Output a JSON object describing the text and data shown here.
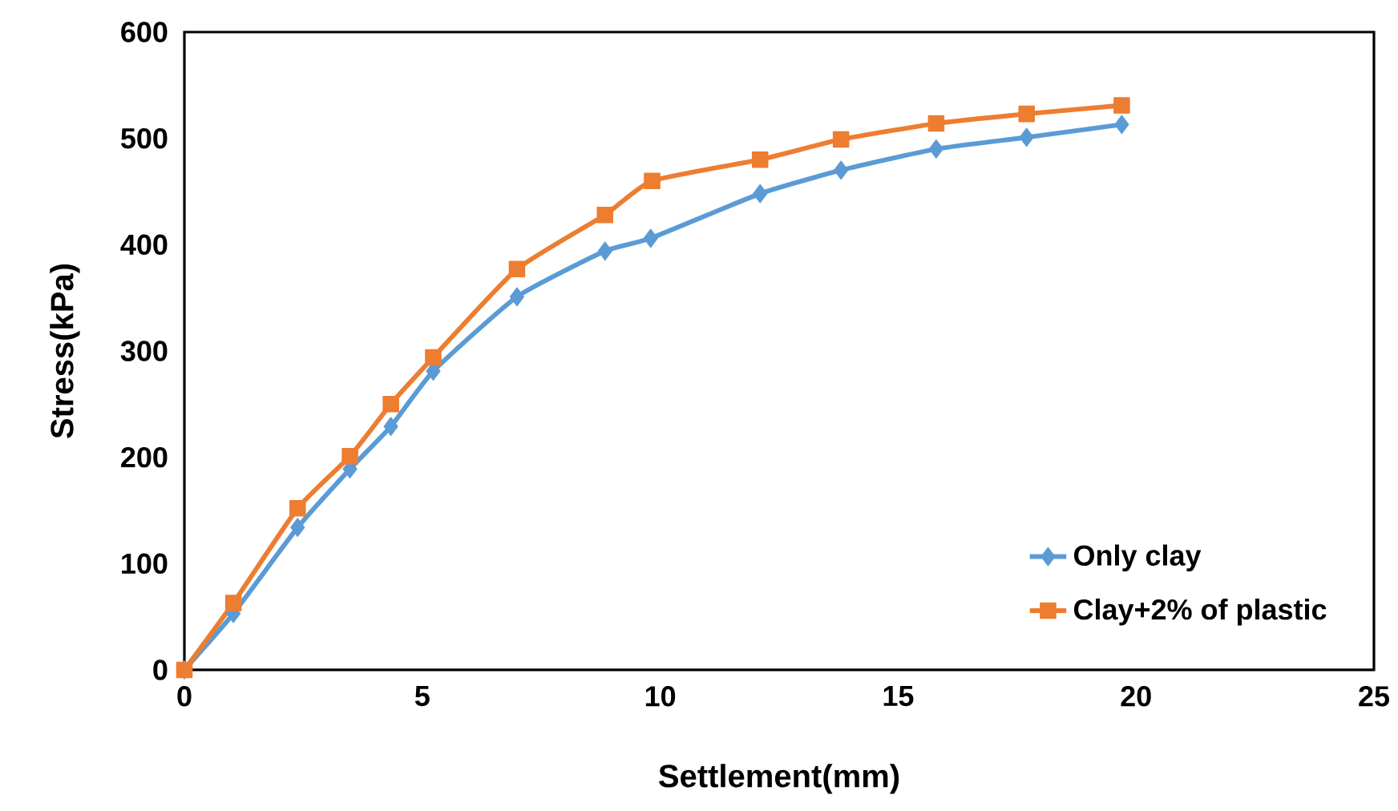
{
  "chart_data": {
    "type": "line",
    "xlabel": "Settlement(mm)",
    "ylabel": "Stress(kPa)",
    "xlim": [
      0,
      25
    ],
    "xticks": [
      0,
      5,
      10,
      15,
      20,
      25
    ],
    "ylim": [
      0,
      600
    ],
    "yticks": [
      0,
      100,
      200,
      300,
      400,
      500,
      600
    ],
    "grid": false,
    "legend": "bottom right",
    "line_style": "solid",
    "series": [
      {
        "name": "Only clay",
        "color": "#5b9bd5",
        "marker": "diamond",
        "x": [
          0,
          1.03,
          2.38,
          3.48,
          4.34,
          5.23,
          6.99,
          8.84,
          9.8,
          12.1,
          13.8,
          15.8,
          17.7,
          19.7
        ],
        "values": [
          0,
          53,
          134,
          189,
          229,
          281,
          351,
          394,
          406,
          448,
          470,
          490,
          501,
          513
        ]
      },
      {
        "name": "Clay+2% of plastic",
        "color": "#ed7d31",
        "marker": "square",
        "x": [
          0,
          1.03,
          2.38,
          3.48,
          4.34,
          5.23,
          6.99,
          8.84,
          9.83,
          12.1,
          13.8,
          15.8,
          17.7,
          19.7
        ],
        "values": [
          0,
          63,
          152,
          201,
          250,
          294,
          377,
          428,
          460,
          480,
          499,
          514,
          523,
          531
        ]
      }
    ]
  }
}
